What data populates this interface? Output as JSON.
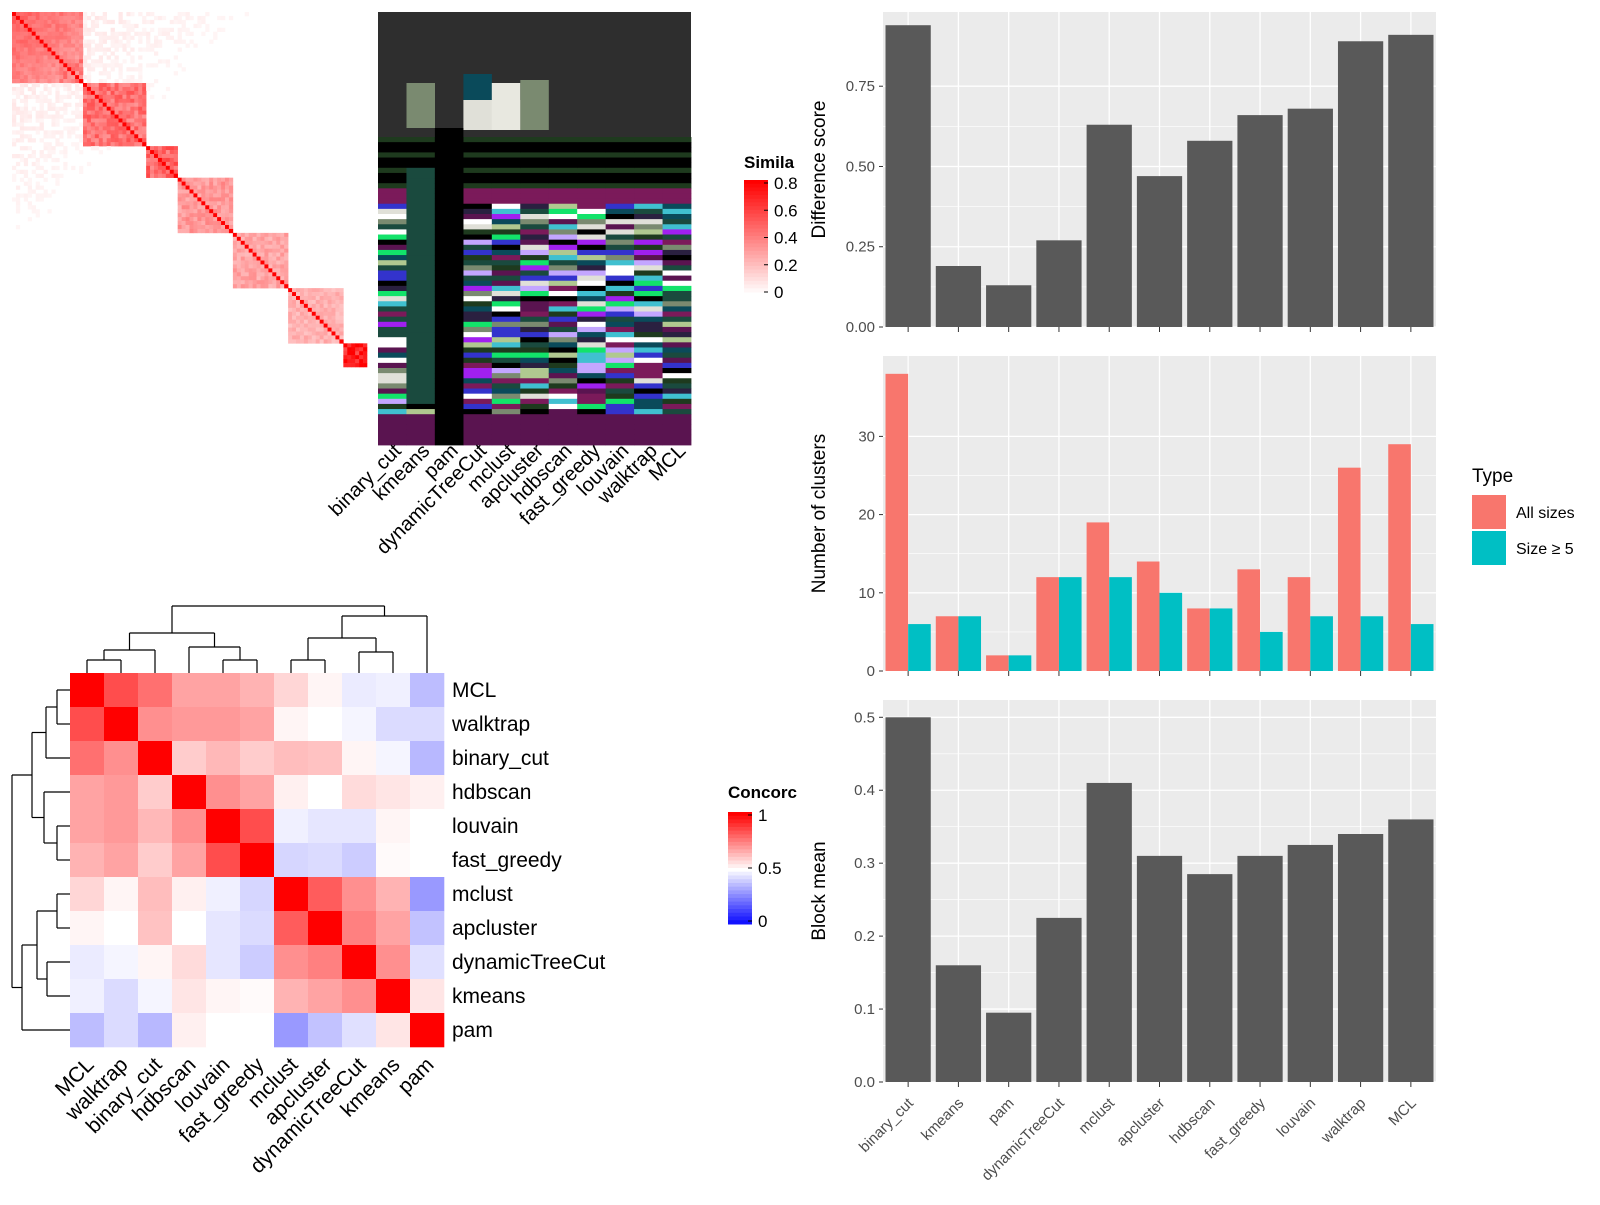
{
  "methods": [
    "binary_cut",
    "kmeans",
    "pam",
    "dynamicTreeCut",
    "mclust",
    "apcluster",
    "hdbscan",
    "fast_greedy",
    "louvain",
    "walktrap",
    "MCL"
  ],
  "similarity_legend": {
    "title": "Simila",
    "ticks": [
      "0.8",
      "0.6",
      "0.4",
      "0.2",
      "0"
    ]
  },
  "concordance_legend": {
    "title": "Concorc",
    "ticks": [
      "1",
      "0.5",
      "0"
    ]
  },
  "type_legend": {
    "title": "Type",
    "items": [
      "All sizes",
      "Size ≥ 5"
    ]
  },
  "colors": {
    "all_sizes": "#F8766D",
    "size_ge5": "#00BFC4",
    "bar": "#595959",
    "panel": "#EBEBEB",
    "high": "#FF0000",
    "mid": "#FFFFFF",
    "low": "#0000FF"
  },
  "chart_data": [
    {
      "type": "heatmap",
      "name": "similarity",
      "note_values": "block-structured similarity matrix, diagonal ~0.8",
      "range": [
        0,
        0.8
      ]
    },
    {
      "type": "heatmap",
      "name": "cluster_assignments",
      "columns": [
        "binary_cut",
        "kmeans",
        "pam",
        "dynamicTreeCut",
        "mclust",
        "apcluster",
        "hdbscan",
        "fast_greedy",
        "louvain",
        "walktrap",
        "MCL"
      ]
    },
    {
      "type": "heatmap",
      "name": "concordance",
      "rows": [
        "MCL",
        "walktrap",
        "binary_cut",
        "hdbscan",
        "louvain",
        "fast_greedy",
        "mclust",
        "apcluster",
        "dynamicTreeCut",
        "kmeans",
        "pam"
      ],
      "columns": [
        "MCL",
        "walktrap",
        "binary_cut",
        "hdbscan",
        "louvain",
        "fast_greedy",
        "mclust",
        "apcluster",
        "dynamicTreeCut",
        "kmeans",
        "pam"
      ],
      "values": [
        [
          1.0,
          0.85,
          0.78,
          0.68,
          0.68,
          0.65,
          0.58,
          0.52,
          0.46,
          0.47,
          0.37
        ],
        [
          0.85,
          1.0,
          0.72,
          0.7,
          0.7,
          0.68,
          0.52,
          0.5,
          0.48,
          0.43,
          0.43
        ],
        [
          0.78,
          0.72,
          1.0,
          0.6,
          0.64,
          0.6,
          0.63,
          0.62,
          0.52,
          0.48,
          0.36
        ],
        [
          0.68,
          0.7,
          0.6,
          1.0,
          0.72,
          0.68,
          0.53,
          0.5,
          0.57,
          0.55,
          0.53
        ],
        [
          0.68,
          0.7,
          0.64,
          0.72,
          1.0,
          0.85,
          0.47,
          0.45,
          0.45,
          0.52,
          0.5
        ],
        [
          0.65,
          0.68,
          0.6,
          0.68,
          0.85,
          1.0,
          0.42,
          0.43,
          0.4,
          0.51,
          0.5
        ],
        [
          0.58,
          0.52,
          0.63,
          0.53,
          0.47,
          0.42,
          1.0,
          0.82,
          0.72,
          0.65,
          0.3
        ],
        [
          0.52,
          0.5,
          0.62,
          0.5,
          0.45,
          0.43,
          0.82,
          1.0,
          0.75,
          0.68,
          0.38
        ],
        [
          0.46,
          0.48,
          0.52,
          0.57,
          0.45,
          0.4,
          0.72,
          0.75,
          1.0,
          0.72,
          0.44
        ],
        [
          0.47,
          0.43,
          0.48,
          0.55,
          0.52,
          0.51,
          0.65,
          0.68,
          0.72,
          1.0,
          0.55
        ],
        [
          0.37,
          0.43,
          0.36,
          0.53,
          0.5,
          0.5,
          0.3,
          0.38,
          0.44,
          0.55,
          1.0
        ]
      ],
      "range": [
        0,
        1
      ]
    },
    {
      "type": "bar",
      "name": "difference_score",
      "categories": [
        "binary_cut",
        "kmeans",
        "pam",
        "dynamicTreeCut",
        "mclust",
        "apcluster",
        "hdbscan",
        "fast_greedy",
        "louvain",
        "walktrap",
        "MCL"
      ],
      "values": [
        0.94,
        0.19,
        0.13,
        0.27,
        0.63,
        0.47,
        0.58,
        0.66,
        0.68,
        0.89,
        0.91
      ],
      "ylabel": "Difference score",
      "ylim": [
        0,
        0.95
      ],
      "yticks": [
        "0.00",
        "0.25",
        "0.50",
        "0.75"
      ],
      "grid": true
    },
    {
      "type": "bar",
      "name": "number_of_clusters",
      "categories": [
        "binary_cut",
        "kmeans",
        "pam",
        "dynamicTreeCut",
        "mclust",
        "apcluster",
        "hdbscan",
        "fast_greedy",
        "louvain",
        "walktrap",
        "MCL"
      ],
      "series": [
        {
          "name": "All sizes",
          "values": [
            38,
            7,
            2,
            12,
            19,
            14,
            8,
            13,
            12,
            26,
            29
          ]
        },
        {
          "name": "Size ≥ 5",
          "values": [
            6,
            7,
            2,
            12,
            12,
            10,
            8,
            5,
            7,
            7,
            6
          ]
        }
      ],
      "ylabel": "Number of clusters",
      "ylim": [
        0,
        39
      ],
      "yticks": [
        "0",
        "10",
        "20",
        "30"
      ],
      "legend": "right",
      "grid": true
    },
    {
      "type": "bar",
      "name": "block_mean",
      "categories": [
        "binary_cut",
        "kmeans",
        "pam",
        "dynamicTreeCut",
        "mclust",
        "apcluster",
        "hdbscan",
        "fast_greedy",
        "louvain",
        "walktrap",
        "MCL"
      ],
      "values": [
        0.5,
        0.16,
        0.095,
        0.225,
        0.41,
        0.31,
        0.285,
        0.31,
        0.325,
        0.34,
        0.36
      ],
      "ylabel": "Block mean",
      "ylim": [
        0,
        0.51
      ],
      "yticks": [
        "0.0",
        "0.1",
        "0.2",
        "0.3",
        "0.4",
        "0.5"
      ],
      "grid": true
    }
  ]
}
